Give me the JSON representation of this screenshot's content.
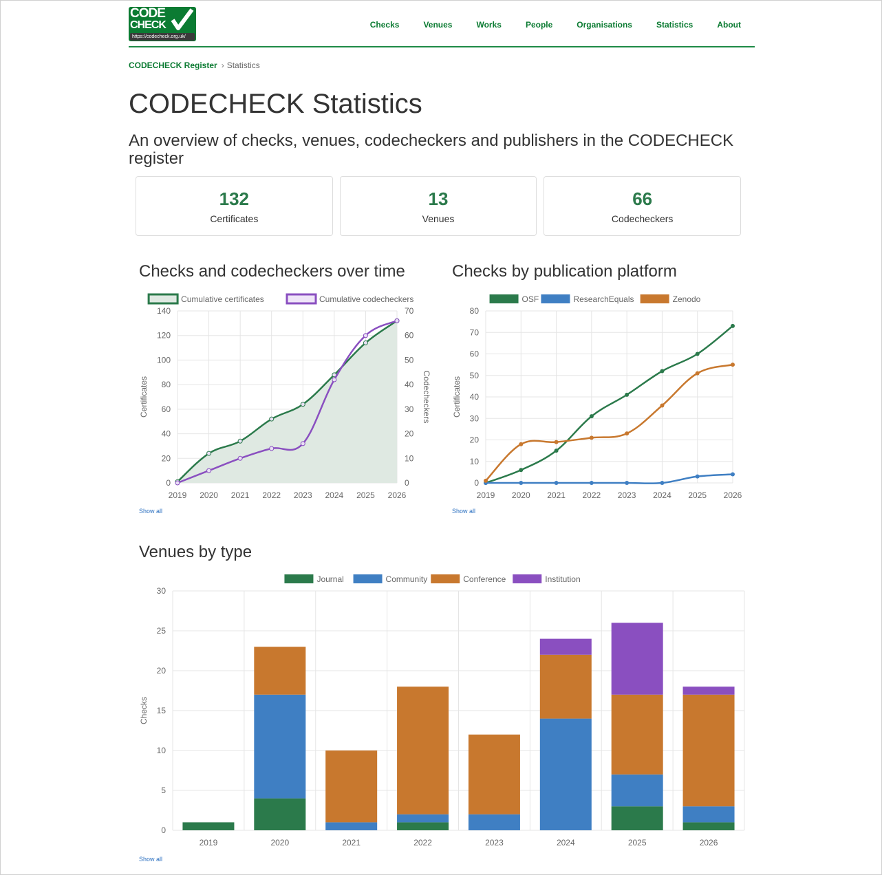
{
  "header": {
    "logo_line1": "CODE",
    "logo_line2": "CHECK",
    "logo_url": "https://codecheck.org.uk/",
    "nav": [
      "Checks",
      "Venues",
      "Works",
      "People",
      "Organisations",
      "Statistics",
      "About"
    ]
  },
  "breadcrumb": {
    "root": "CODECHECK Register",
    "separator": "›",
    "current": "Statistics"
  },
  "page": {
    "title": "CODECHECK Statistics",
    "subtitle": "An overview of checks, venues, codecheckers and publishers in the CODECHECK register"
  },
  "summary": [
    {
      "value": "132",
      "label": "Certificates"
    },
    {
      "value": "13",
      "label": "Venues"
    },
    {
      "value": "66",
      "label": "Codecheckers"
    }
  ],
  "show_all_label": "Show all",
  "colors": {
    "brand": "#0b7b32",
    "green": "#2b7a4b",
    "purple": "#8a4fc0",
    "blue": "#3f7fc3",
    "orange": "#c8782e"
  },
  "chart_data": [
    {
      "type": "line",
      "title": "Checks and codecheckers over time",
      "x": [
        "2019",
        "2020",
        "2021",
        "2022",
        "2023",
        "2024",
        "2025",
        "2026"
      ],
      "ylabel": "Certificates",
      "ylabel_right": "Codecheckers",
      "ylim": [
        0,
        140
      ],
      "ylim_right": [
        0,
        70
      ],
      "yticks": [
        0,
        20,
        40,
        60,
        80,
        100,
        120,
        140
      ],
      "yticks_right": [
        0,
        10,
        20,
        30,
        40,
        50,
        60,
        70
      ],
      "legend_position": "top",
      "grid": true,
      "series": [
        {
          "name": "Cumulative certificates",
          "axis": "left",
          "fill": true,
          "color": "#2b7a4b",
          "values": [
            1,
            24,
            34,
            52,
            64,
            88,
            114,
            132
          ]
        },
        {
          "name": "Cumulative codecheckers",
          "axis": "right",
          "fill": false,
          "color": "#8a4fc0",
          "values": [
            0,
            5,
            10,
            14,
            16,
            42,
            60,
            66
          ]
        }
      ]
    },
    {
      "type": "line",
      "title": "Checks by publication platform",
      "x": [
        "2019",
        "2020",
        "2021",
        "2022",
        "2023",
        "2024",
        "2025",
        "2026"
      ],
      "ylabel": "Certificates",
      "ylim": [
        0,
        80
      ],
      "yticks": [
        0,
        10,
        20,
        30,
        40,
        50,
        60,
        70,
        80
      ],
      "legend_position": "top",
      "grid": true,
      "series": [
        {
          "name": "OSF",
          "color": "#2b7a4b",
          "values": [
            0,
            6,
            15,
            31,
            41,
            52,
            60,
            73
          ]
        },
        {
          "name": "ResearchEquals",
          "color": "#3f7fc3",
          "values": [
            0,
            0,
            0,
            0,
            0,
            0,
            3,
            4
          ]
        },
        {
          "name": "Zenodo",
          "color": "#c8782e",
          "values": [
            1,
            18,
            19,
            21,
            23,
            36,
            51,
            55
          ]
        }
      ]
    },
    {
      "type": "bar",
      "stacked": true,
      "title": "Venues by type",
      "categories": [
        "2019",
        "2020",
        "2021",
        "2022",
        "2023",
        "2024",
        "2025",
        "2026"
      ],
      "ylabel": "Checks",
      "ylim": [
        0,
        30
      ],
      "yticks": [
        0,
        5,
        10,
        15,
        20,
        25,
        30
      ],
      "legend_position": "top",
      "grid": true,
      "series": [
        {
          "name": "Journal",
          "color": "#2b7a4b",
          "values": [
            1,
            4,
            0,
            1,
            0,
            0,
            3,
            1
          ]
        },
        {
          "name": "Community",
          "color": "#3f7fc3",
          "values": [
            0,
            13,
            1,
            1,
            2,
            14,
            4,
            2
          ]
        },
        {
          "name": "Conference",
          "color": "#c8782e",
          "values": [
            0,
            6,
            9,
            16,
            10,
            8,
            10,
            14
          ]
        },
        {
          "name": "Institution",
          "color": "#8a4fc0",
          "values": [
            0,
            0,
            0,
            0,
            0,
            2,
            9,
            1
          ]
        }
      ]
    }
  ]
}
